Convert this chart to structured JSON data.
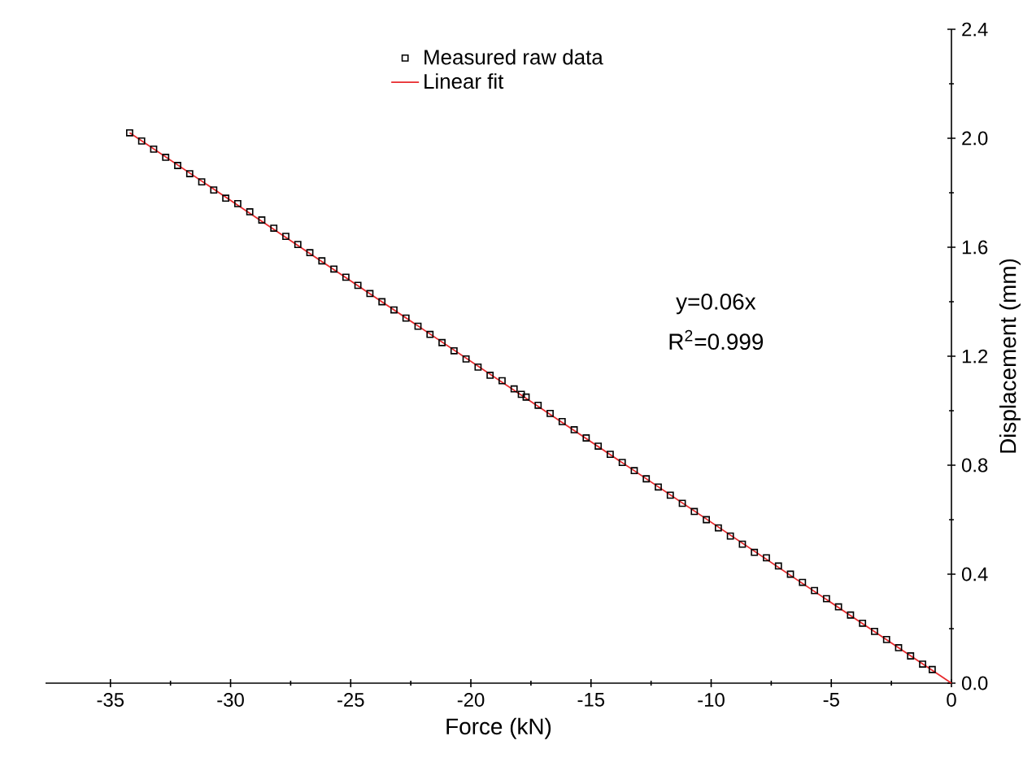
{
  "chart_data": {
    "type": "scatter",
    "xlabel": "Force (kN)",
    "ylabel": "Displacement (mm)",
    "xlim": [
      -37.7,
      0
    ],
    "xticks": [
      -35,
      -30,
      -25,
      -20,
      -15,
      -10,
      -5,
      0
    ],
    "ylim": [
      0,
      2.4
    ],
    "yticks": [
      {
        "value": 0,
        "label": "0.0"
      },
      {
        "value": 0.4,
        "label": "0.4"
      },
      {
        "value": 0.8,
        "label": "0.8"
      },
      {
        "value": 1.2,
        "label": "1.2"
      },
      {
        "value": 1.6,
        "label": "1.6"
      },
      {
        "value": 2.0,
        "label": "2.0"
      },
      {
        "value": 2.4,
        "label": "2.4"
      }
    ],
    "legend": "top",
    "grid": false,
    "annotations": [
      "y=0.06x",
      "R$^{2}$=0.999"
    ],
    "series": [
      {
        "name": "Measured raw data",
        "marker": "square",
        "color": "#000000",
        "x": [
          -34.2,
          -33.7,
          -33.2,
          -32.7,
          -32.2,
          -31.7,
          -31.2,
          -30.7,
          -30.2,
          -29.7,
          -29.2,
          -28.7,
          -28.2,
          -27.7,
          -27.2,
          -26.7,
          -26.2,
          -25.7,
          -25.2,
          -24.7,
          -24.2,
          -23.7,
          -23.2,
          -22.7,
          -22.2,
          -21.7,
          -21.2,
          -20.7,
          -20.2,
          -19.7,
          -19.2,
          -18.7,
          -18.2,
          -17.9,
          -17.7,
          -17.2,
          -16.7,
          -16.2,
          -15.7,
          -15.2,
          -14.7,
          -14.2,
          -13.7,
          -13.2,
          -12.7,
          -12.2,
          -11.7,
          -11.2,
          -10.7,
          -10.2,
          -9.7,
          -9.2,
          -8.7,
          -8.2,
          -7.7,
          -7.2,
          -6.7,
          -6.2,
          -5.7,
          -5.2,
          -4.7,
          -4.2,
          -3.7,
          -3.2,
          -2.7,
          -2.2,
          -1.7,
          -1.2,
          -0.8
        ],
        "values": [
          2.02,
          1.99,
          1.96,
          1.93,
          1.9,
          1.87,
          1.84,
          1.81,
          1.78,
          1.76,
          1.73,
          1.7,
          1.67,
          1.64,
          1.61,
          1.58,
          1.55,
          1.52,
          1.49,
          1.46,
          1.43,
          1.4,
          1.37,
          1.34,
          1.31,
          1.28,
          1.25,
          1.22,
          1.19,
          1.16,
          1.13,
          1.11,
          1.08,
          1.06,
          1.05,
          1.02,
          0.99,
          0.96,
          0.93,
          0.9,
          0.87,
          0.84,
          0.81,
          0.78,
          0.75,
          0.72,
          0.69,
          0.66,
          0.63,
          0.6,
          0.57,
          0.54,
          0.51,
          0.48,
          0.46,
          0.43,
          0.4,
          0.37,
          0.34,
          0.31,
          0.28,
          0.25,
          0.22,
          0.19,
          0.16,
          0.13,
          0.1,
          0.07,
          0.05
        ]
      },
      {
        "name": "Linear fit",
        "type": "line",
        "line_style": "solid",
        "color": "#e8292c",
        "x": [
          -34.2,
          0
        ],
        "values": [
          2.02,
          0
        ]
      }
    ]
  }
}
